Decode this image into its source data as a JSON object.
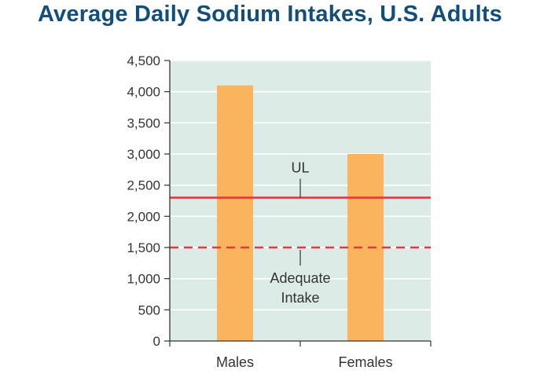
{
  "colors": {
    "title": "#114E7A",
    "plot_bg": "#DCEBE6",
    "gridline": "#FFFFFF",
    "bar": "#FBB45E",
    "ul_line": "#E5383F",
    "ai_line": "#E5383F",
    "axis": "#333333"
  },
  "chart_data": {
    "type": "bar",
    "title": "Average Daily Sodium Intakes, U.S. Adults",
    "xlabel": "",
    "ylabel": "",
    "categories": [
      "Males",
      "Females"
    ],
    "values": [
      4100,
      3000
    ],
    "ylim": [
      0,
      4500
    ],
    "yticks": [
      0,
      500,
      1000,
      1500,
      2000,
      2500,
      3000,
      3500,
      4000,
      4500
    ],
    "ytick_labels": [
      "0",
      "500",
      "1,000",
      "1,500",
      "2,000",
      "2,500",
      "3,000",
      "3,500",
      "4,000",
      "4,500"
    ],
    "grid": true,
    "reference_lines": [
      {
        "value": 2300,
        "style": "solid",
        "label_lines": [
          "UL"
        ]
      },
      {
        "value": 1500,
        "style": "dashed",
        "label_lines": [
          "Adequate",
          "Intake"
        ]
      }
    ]
  }
}
